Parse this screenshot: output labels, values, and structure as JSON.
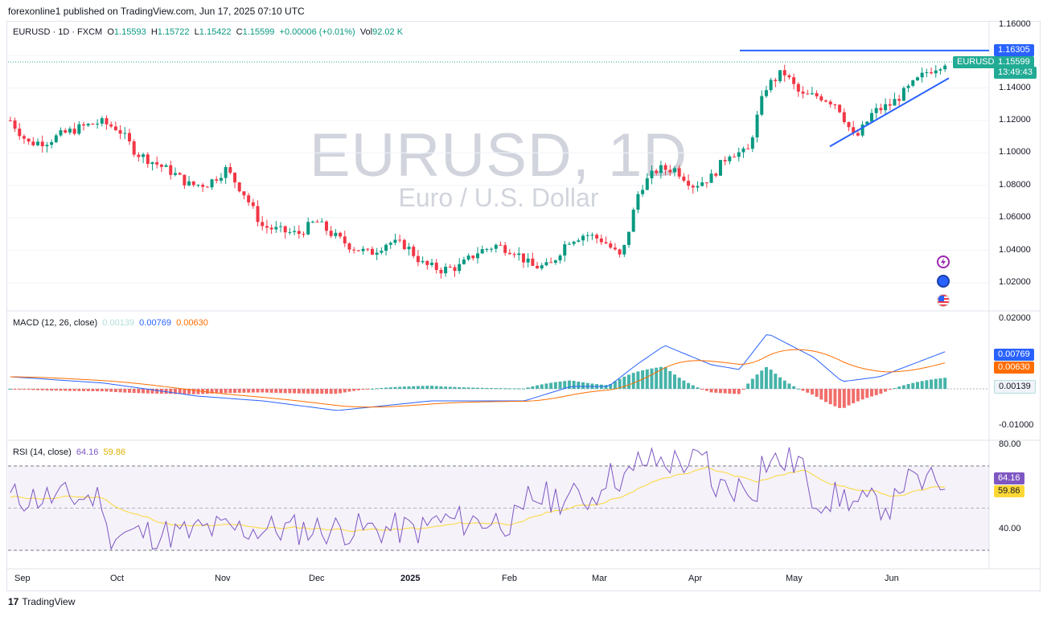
{
  "publisher": "forexonline1 published on TradingView.com, Jun 17, 2025 07:10 UTC",
  "symbol_info": {
    "symbol": "EURUSD · 1D · FXCM",
    "open_label": "O",
    "open": "1.15593",
    "high_label": "H",
    "high": "1.15722",
    "low_label": "L",
    "low": "1.15422",
    "close_label": "C",
    "close": "1.15599",
    "change": "+0.00006 (+0.01%)",
    "vol_label": "Vol",
    "vol": "92.02 K"
  },
  "watermark": {
    "title": "EURUSD, 1D",
    "subtitle": "Euro / U.S. Dollar"
  },
  "price_axis": [
    "1.16000",
    "1.14000",
    "1.12000",
    "1.10000",
    "1.08000",
    "1.06000",
    "1.04000",
    "1.02000"
  ],
  "price_tags": {
    "resistance": "1.16305",
    "symbol": "EURUSD",
    "last": "1.15599",
    "countdown": "13:49:43"
  },
  "macd": {
    "title": "MACD (12, 26, close)",
    "hist": "0.00139",
    "macd": "0.00769",
    "signal": "0.00630",
    "axis": [
      "0.02000",
      "-0.01000"
    ],
    "tags": {
      "macd": "0.00769",
      "signal": "0.00630",
      "hist": "0.00139"
    }
  },
  "rsi": {
    "title": "RSI (14, close)",
    "rsi": "64.16",
    "ma": "59.86",
    "axis": [
      "80.00",
      "40.00"
    ],
    "tags": {
      "rsi": "64.16",
      "ma": "59.86"
    }
  },
  "time_axis": [
    "Sep",
    "Oct",
    "Nov",
    "Dec",
    "2025",
    "Feb",
    "Mar",
    "Apr",
    "May",
    "Jun"
  ],
  "footer": {
    "brand": "TradingView"
  },
  "icons": [
    "lightning-icon",
    "globe-icon",
    "us-flag-icon"
  ],
  "colors": {
    "up": "#089981",
    "down": "#f23645",
    "macd_line": "#2962ff",
    "signal_line": "#ff6d00",
    "rsi_line": "#7e57c2",
    "rsi_ma": "#fdd835",
    "trendline": "#2962ff",
    "tag_green": "#22ab94"
  },
  "chart_data": {
    "type": "candlestick",
    "x": [
      "Sep",
      "Oct",
      "Nov",
      "Dec",
      "2025",
      "Feb",
      "Mar",
      "Apr",
      "May",
      "Jun"
    ],
    "close_path": [
      1.12,
      1.106,
      1.107,
      1.112,
      1.116,
      1.119,
      1.115,
      1.1,
      1.094,
      1.088,
      1.08,
      1.081,
      1.09,
      1.075,
      1.055,
      1.052,
      1.05,
      1.058,
      1.049,
      1.042,
      1.038,
      1.045,
      1.043,
      1.031,
      1.028,
      1.03,
      1.039,
      1.043,
      1.04,
      1.03,
      1.03,
      1.046,
      1.05,
      1.046,
      1.035,
      1.078,
      1.09,
      1.09,
      1.08,
      1.085,
      1.1,
      1.1,
      1.14,
      1.15,
      1.135,
      1.135,
      1.13,
      1.108,
      1.125,
      1.13,
      1.14,
      1.15,
      1.156
    ],
    "resistance": 1.16305,
    "last_price": 1.15599,
    "ylim": [
      1.015,
      1.165
    ],
    "macd_axis": [
      -0.01,
      0.02
    ],
    "rsi_axis": [
      40,
      80
    ]
  }
}
